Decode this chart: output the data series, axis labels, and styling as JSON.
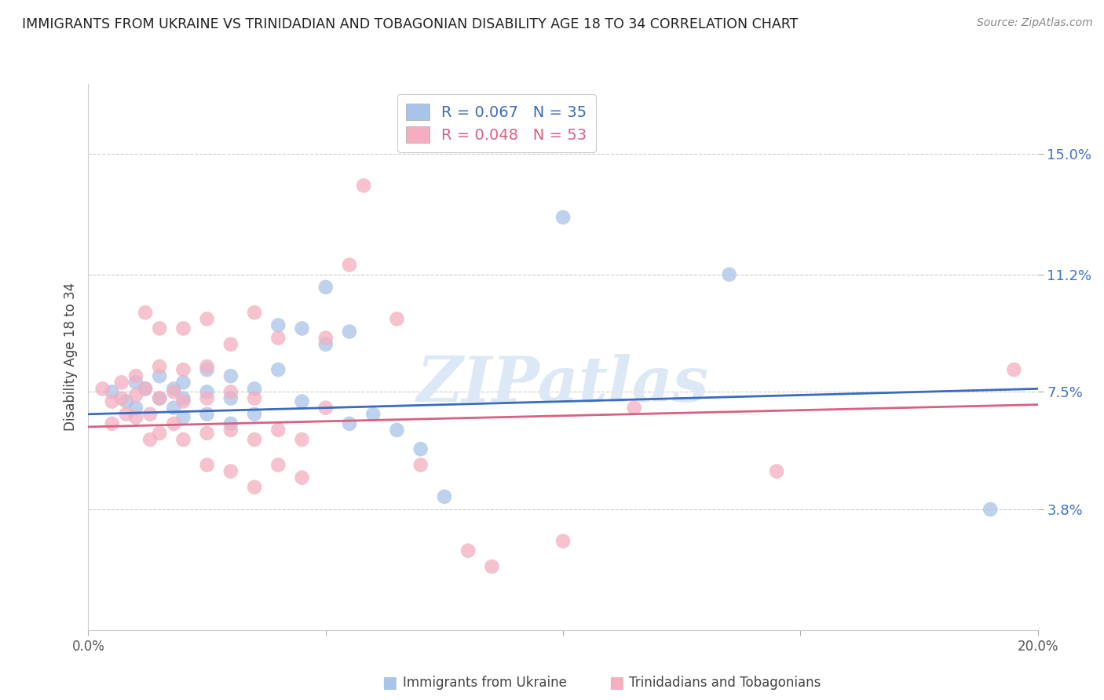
{
  "title": "IMMIGRANTS FROM UKRAINE VS TRINIDADIAN AND TOBAGONIAN DISABILITY AGE 18 TO 34 CORRELATION CHART",
  "source": "Source: ZipAtlas.com",
  "ylabel": "Disability Age 18 to 34",
  "yticks": [
    0.038,
    0.075,
    0.112,
    0.15
  ],
  "ytick_labels": [
    "3.8%",
    "7.5%",
    "11.2%",
    "15.0%"
  ],
  "xticks": [
    0.0,
    0.05,
    0.1,
    0.15,
    0.2
  ],
  "xtick_labels": [
    "0.0%",
    "",
    "",
    "",
    "20.0%"
  ],
  "xmin": 0.0,
  "xmax": 0.2,
  "ymin": 0.0,
  "ymax": 0.172,
  "legend_blue_r": "R = 0.067",
  "legend_blue_n": "N = 35",
  "legend_pink_r": "R = 0.048",
  "legend_pink_n": "N = 53",
  "legend_blue_label": "Immigrants from Ukraine",
  "legend_pink_label": "Trinidadians and Tobagonians",
  "watermark": "ZIPatlas",
  "blue_color": "#a8c4e8",
  "pink_color": "#f4aec0",
  "line_blue_color": "#3b6bbf",
  "line_pink_color": "#d96080",
  "blue_scatter": [
    [
      0.005,
      0.075
    ],
    [
      0.008,
      0.072
    ],
    [
      0.01,
      0.078
    ],
    [
      0.01,
      0.07
    ],
    [
      0.012,
      0.076
    ],
    [
      0.015,
      0.08
    ],
    [
      0.015,
      0.073
    ],
    [
      0.018,
      0.076
    ],
    [
      0.018,
      0.07
    ],
    [
      0.02,
      0.078
    ],
    [
      0.02,
      0.073
    ],
    [
      0.02,
      0.067
    ],
    [
      0.025,
      0.082
    ],
    [
      0.025,
      0.075
    ],
    [
      0.025,
      0.068
    ],
    [
      0.03,
      0.08
    ],
    [
      0.03,
      0.073
    ],
    [
      0.03,
      0.065
    ],
    [
      0.035,
      0.076
    ],
    [
      0.035,
      0.068
    ],
    [
      0.04,
      0.096
    ],
    [
      0.04,
      0.082
    ],
    [
      0.045,
      0.095
    ],
    [
      0.045,
      0.072
    ],
    [
      0.05,
      0.108
    ],
    [
      0.05,
      0.09
    ],
    [
      0.055,
      0.094
    ],
    [
      0.055,
      0.065
    ],
    [
      0.06,
      0.068
    ],
    [
      0.065,
      0.063
    ],
    [
      0.07,
      0.057
    ],
    [
      0.075,
      0.042
    ],
    [
      0.1,
      0.13
    ],
    [
      0.135,
      0.112
    ],
    [
      0.19,
      0.038
    ]
  ],
  "pink_scatter": [
    [
      0.003,
      0.076
    ],
    [
      0.005,
      0.072
    ],
    [
      0.005,
      0.065
    ],
    [
      0.007,
      0.078
    ],
    [
      0.007,
      0.073
    ],
    [
      0.008,
      0.068
    ],
    [
      0.01,
      0.08
    ],
    [
      0.01,
      0.074
    ],
    [
      0.01,
      0.067
    ],
    [
      0.012,
      0.1
    ],
    [
      0.012,
      0.076
    ],
    [
      0.013,
      0.068
    ],
    [
      0.013,
      0.06
    ],
    [
      0.015,
      0.095
    ],
    [
      0.015,
      0.083
    ],
    [
      0.015,
      0.073
    ],
    [
      0.015,
      0.062
    ],
    [
      0.018,
      0.075
    ],
    [
      0.018,
      0.065
    ],
    [
      0.02,
      0.095
    ],
    [
      0.02,
      0.082
    ],
    [
      0.02,
      0.072
    ],
    [
      0.02,
      0.06
    ],
    [
      0.025,
      0.098
    ],
    [
      0.025,
      0.083
    ],
    [
      0.025,
      0.073
    ],
    [
      0.025,
      0.062
    ],
    [
      0.025,
      0.052
    ],
    [
      0.03,
      0.09
    ],
    [
      0.03,
      0.075
    ],
    [
      0.03,
      0.063
    ],
    [
      0.03,
      0.05
    ],
    [
      0.035,
      0.1
    ],
    [
      0.035,
      0.073
    ],
    [
      0.035,
      0.06
    ],
    [
      0.035,
      0.045
    ],
    [
      0.04,
      0.092
    ],
    [
      0.04,
      0.063
    ],
    [
      0.04,
      0.052
    ],
    [
      0.045,
      0.06
    ],
    [
      0.045,
      0.048
    ],
    [
      0.05,
      0.092
    ],
    [
      0.05,
      0.07
    ],
    [
      0.055,
      0.115
    ],
    [
      0.058,
      0.14
    ],
    [
      0.065,
      0.098
    ],
    [
      0.07,
      0.052
    ],
    [
      0.08,
      0.025
    ],
    [
      0.085,
      0.02
    ],
    [
      0.1,
      0.028
    ],
    [
      0.115,
      0.07
    ],
    [
      0.145,
      0.05
    ],
    [
      0.195,
      0.082
    ]
  ],
  "blue_line_x": [
    0.0,
    0.2
  ],
  "blue_line_y": [
    0.068,
    0.076
  ],
  "pink_line_x": [
    0.0,
    0.2
  ],
  "pink_line_y": [
    0.064,
    0.071
  ]
}
